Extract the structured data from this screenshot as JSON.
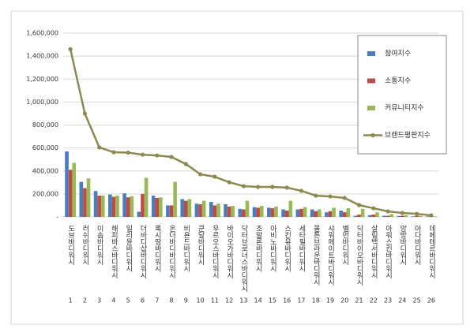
{
  "chart_data": {
    "type": "bar",
    "categories": [
      "도브바디워시",
      "러쉬바디워시",
      "이솝바디워시",
      "해피바스바디워시",
      "일리윤바디워시",
      "더바디샵바디워시",
      "록시땅바디워시",
      "온더바디바디워시",
      "비욘드바디워시",
      "쿤달바디워시",
      "우르오스바디워시",
      "바이오가바디워시",
      "닥터브로너스바디워시",
      "조말론바디워시",
      "아비노바디워시",
      "스킨유바디워시",
      "세타필바디워시",
      "몰튼브라운바디워시",
      "샤워메이트바디워시",
      "벨먼바디워시",
      "닥터바이오바디워시",
      "살림백서바디워시",
      "아워스킨바디워시",
      "앙방바디워시",
      "아다바디워시",
      "데메테르바디워시"
    ],
    "ranks": [
      1,
      2,
      3,
      4,
      5,
      6,
      7,
      8,
      9,
      10,
      11,
      12,
      13,
      14,
      15,
      16,
      17,
      18,
      19,
      20,
      21,
      22,
      23,
      24,
      25,
      26
    ],
    "series": [
      {
        "name": "참여지수",
        "color": "#4a7ebb",
        "values": [
          570000,
          305000,
          225000,
          195000,
          205000,
          45000,
          185000,
          100000,
          155000,
          115000,
          130000,
          110000,
          70000,
          85000,
          80000,
          65000,
          65000,
          65000,
          40000,
          55000,
          10000,
          15000,
          10000,
          8000,
          5000,
          5000
        ]
      },
      {
        "name": "소통지수",
        "color": "#be4b48",
        "values": [
          410000,
          250000,
          185000,
          175000,
          170000,
          200000,
          165000,
          100000,
          140000,
          110000,
          100000,
          90000,
          65000,
          80000,
          75000,
          55000,
          70000,
          50000,
          50000,
          40000,
          20000,
          20000,
          10000,
          10000,
          10000,
          5000
        ]
      },
      {
        "name": "커뮤니티지수",
        "color": "#98b954",
        "values": [
          470000,
          335000,
          185000,
          185000,
          180000,
          340000,
          170000,
          305000,
          155000,
          140000,
          115000,
          95000,
          140000,
          95000,
          90000,
          140000,
          85000,
          65000,
          80000,
          75000,
          70000,
          40000,
          25000,
          15000,
          10000,
          5000
        ]
      },
      {
        "name": "브랜드평판지수",
        "color": "#8c8a50",
        "type": "line",
        "values": [
          1460000,
          900000,
          605000,
          563000,
          560000,
          542000,
          535000,
          522000,
          460000,
          371000,
          350000,
          302000,
          268000,
          261000,
          261000,
          255000,
          227000,
          185000,
          178000,
          165000,
          103000,
          75000,
          48000,
          34000,
          27000,
          14000
        ]
      }
    ],
    "ylim": [
      0,
      1600000
    ],
    "yticks": [
      {
        "value": 0,
        "label": "-"
      },
      {
        "value": 200000,
        "label": "200,000"
      },
      {
        "value": 400000,
        "label": "400,000"
      },
      {
        "value": 600000,
        "label": "600,000"
      },
      {
        "value": 800000,
        "label": "800,000"
      },
      {
        "value": 1000000,
        "label": "1,000,000"
      },
      {
        "value": 1200000,
        "label": "1,200,000"
      },
      {
        "value": 1400000,
        "label": "1,400,000"
      },
      {
        "value": 1600000,
        "label": "1,600,000"
      }
    ],
    "grid": true
  }
}
